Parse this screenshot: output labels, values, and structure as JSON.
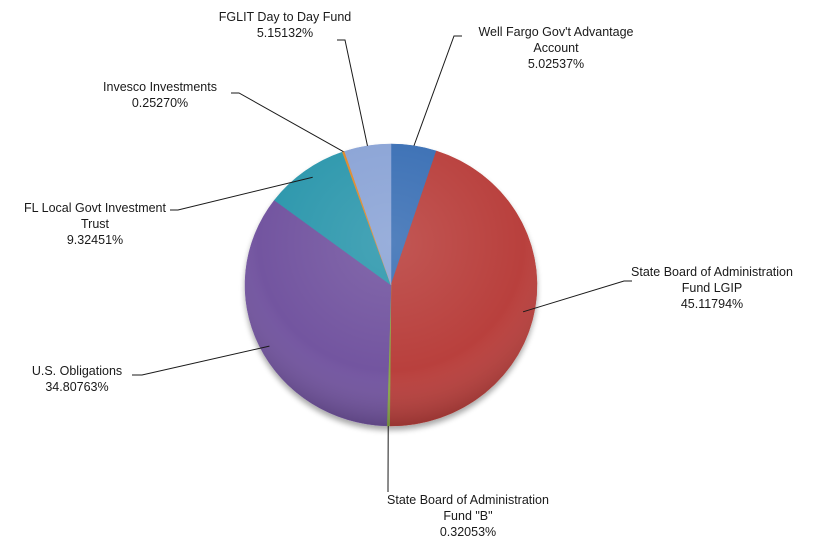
{
  "chart_data": {
    "type": "pie",
    "title": "",
    "legend": "none",
    "slices": [
      {
        "name": "Well Fargo Gov't Advantage Account",
        "label_lines": [
          "Well Fargo Gov't Advantage",
          "Account"
        ],
        "value_text": "5.02537%",
        "value": 5.02537,
        "color": "#3b6fb5"
      },
      {
        "name": "State Board of Administration Fund LGIP",
        "label_lines": [
          "State Board of Administration",
          "Fund LGIP"
        ],
        "value_text": "45.11794%",
        "value": 45.11794,
        "color": "#b9413c"
      },
      {
        "name": "State Board of Administration Fund \"B\"",
        "label_lines": [
          "State Board of Administration",
          "Fund \"B\""
        ],
        "value_text": "0.32053%",
        "value": 0.32053,
        "color": "#8aa84a"
      },
      {
        "name": "U.S. Obligations",
        "label_lines": [
          "U.S. Obligations"
        ],
        "value_text": "34.80763%",
        "value": 34.80763,
        "color": "#7355a0"
      },
      {
        "name": "FL Local Govt Investment Trust",
        "label_lines": [
          "FL Local Govt Investment",
          "Trust"
        ],
        "value_text": "9.32451%",
        "value": 9.32451,
        "color": "#2e98ad"
      },
      {
        "name": "Invesco Investments",
        "label_lines": [
          "Invesco Investments"
        ],
        "value_text": "0.25270%",
        "value": 0.2527,
        "color": "#e08a2c"
      },
      {
        "name": "FGLIT Day to Day Fund",
        "label_lines": [
          "FGLIT Day to Day Fund"
        ],
        "value_text": "5.15132%",
        "value": 5.15132,
        "color": "#8ba4d6"
      }
    ]
  }
}
